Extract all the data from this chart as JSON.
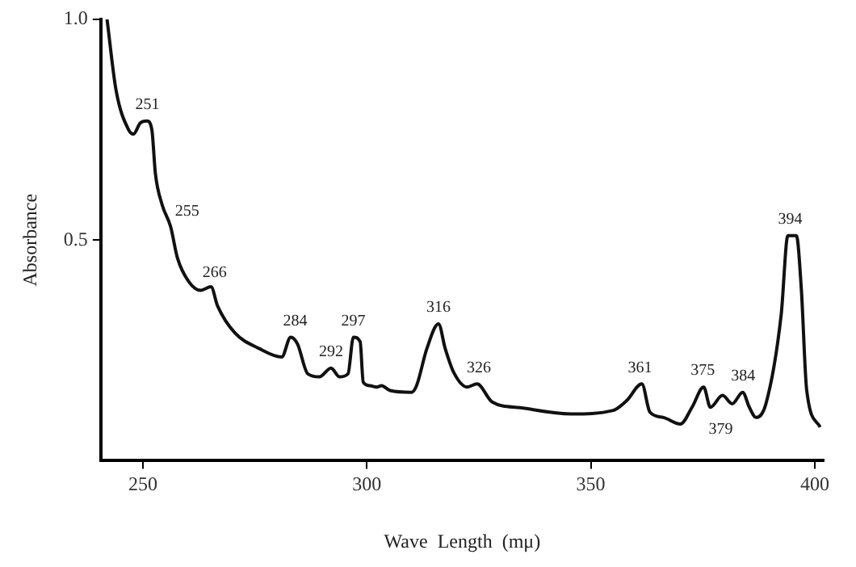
{
  "chart_data": {
    "type": "line",
    "xlabel": "Wave  Length  (mμ)",
    "ylabel": "Absorbance",
    "xlim": [
      240.6,
      402
    ],
    "ylim": [
      0,
      1
    ],
    "xticks": [
      250,
      300,
      350,
      400
    ],
    "yticks": [
      0.5,
      {
        "value": 1,
        "label": "1.0"
      }
    ],
    "grid": false,
    "legend": false,
    "marker": "none",
    "line_style": "solid",
    "series": [
      {
        "color": "#111111",
        "x": [
          242,
          244,
          246.8,
          247.9,
          249.4,
          250.9,
          252,
          252.8,
          254.3,
          256.2,
          257.7,
          260.3,
          262.9,
          265.2,
          266.7,
          270.5,
          276,
          281,
          283,
          284.5,
          286.8,
          289.4,
          292,
          293.9,
          295.8,
          297,
          298.5,
          299.2,
          300.7,
          302.2,
          303.3,
          305.2,
          310,
          311.1,
          313.4,
          316,
          317.5,
          319.4,
          322.4,
          324.6,
          328,
          334.3,
          345.6,
          355,
          358,
          361.4,
          363.2,
          366.2,
          370,
          372.6,
          375.2,
          376.7,
          379.4,
          381.6,
          383.9,
          385.4,
          386.9,
          389.1,
          392.5,
          394,
          395.9,
          397,
          398.2,
          401.2
        ],
        "values": [
          1.0,
          0.84,
          0.75,
          0.74,
          0.765,
          0.77,
          0.75,
          0.65,
          0.58,
          0.53,
          0.46,
          0.405,
          0.386,
          0.394,
          0.35,
          0.29,
          0.254,
          0.235,
          0.28,
          0.265,
          0.197,
          0.19,
          0.21,
          0.19,
          0.197,
          0.28,
          0.27,
          0.178,
          0.17,
          0.167,
          0.17,
          0.159,
          0.155,
          0.17,
          0.254,
          0.31,
          0.254,
          0.2,
          0.167,
          0.174,
          0.133,
          0.12,
          0.106,
          0.114,
          0.136,
          0.174,
          0.11,
          0.098,
          0.083,
          0.121,
          0.167,
          0.121,
          0.148,
          0.129,
          0.155,
          0.121,
          0.098,
          0.129,
          0.33,
          0.51,
          0.51,
          0.39,
          0.16,
          0.076
        ]
      }
    ],
    "annotations": [
      {
        "text": "251",
        "x": 251,
        "y": 0.77
      },
      {
        "text": "255",
        "x": 255,
        "y": 0.55
      },
      {
        "text": "266",
        "x": 266,
        "y": 0.39
      },
      {
        "text": "284",
        "x": 284,
        "y": 0.28
      },
      {
        "text": "292",
        "x": 292,
        "y": 0.21
      },
      {
        "text": "297",
        "x": 297,
        "y": 0.28
      },
      {
        "text": "316",
        "x": 316,
        "y": 0.31
      },
      {
        "text": "326",
        "x": 325,
        "y": 0.174
      },
      {
        "text": "361",
        "x": 361,
        "y": 0.174
      },
      {
        "text": "375",
        "x": 375,
        "y": 0.167
      },
      {
        "text": "379",
        "x": 379,
        "y": 0.148
      },
      {
        "text": "384",
        "x": 384,
        "y": 0.155
      },
      {
        "text": "394",
        "x": 394.5,
        "y": 0.51
      }
    ]
  }
}
